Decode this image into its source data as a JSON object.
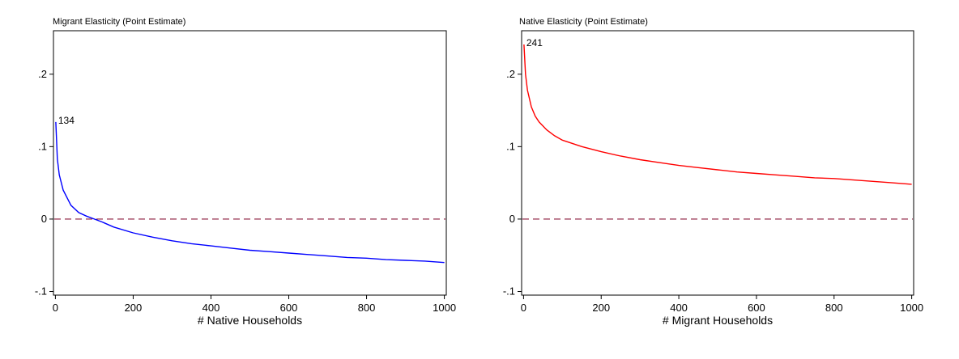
{
  "chart_data": [
    {
      "type": "line",
      "title": "Migrant Elasticity (Point Estimate)",
      "xlabel": "# Native Households",
      "ylabel": "",
      "xlim": [
        -5,
        1005
      ],
      "ylim": [
        -0.105,
        0.26
      ],
      "x_ticks": [
        0,
        200,
        400,
        600,
        800,
        1000
      ],
      "x_tick_labels": [
        "0",
        "200",
        "400",
        "600",
        "800",
        "1000"
      ],
      "y_ticks": [
        -0.1,
        0,
        0.1,
        0.2
      ],
      "y_tick_labels": [
        "-.1",
        "0",
        ".1",
        ".2"
      ],
      "reference_line": {
        "y": 0,
        "style": "dashed",
        "color": "#8b1a3c"
      },
      "annotation": {
        "x": 1,
        "y": 0.134,
        "text": "134"
      },
      "series": [
        {
          "color": "#0000ff",
          "x": [
            1,
            5,
            10,
            20,
            40,
            60,
            80,
            100,
            120,
            150,
            200,
            250,
            300,
            350,
            400,
            450,
            500,
            550,
            600,
            650,
            700,
            750,
            800,
            850,
            900,
            950,
            1000
          ],
          "y": [
            0.134,
            0.083,
            0.061,
            0.04,
            0.019,
            0.009,
            0.004,
            0.0,
            -0.004,
            -0.011,
            -0.019,
            -0.025,
            -0.03,
            -0.034,
            -0.037,
            -0.04,
            -0.043,
            -0.045,
            -0.047,
            -0.049,
            -0.051,
            -0.053,
            -0.054,
            -0.056,
            -0.057,
            -0.058,
            -0.06
          ]
        }
      ]
    },
    {
      "type": "line",
      "title": "Native Elasticity (Point Estimate)",
      "xlabel": "# Migrant Households",
      "ylabel": "",
      "xlim": [
        -5,
        1005
      ],
      "ylim": [
        -0.105,
        0.26
      ],
      "x_ticks": [
        0,
        200,
        400,
        600,
        800,
        1000
      ],
      "x_tick_labels": [
        "0",
        "200",
        "400",
        "600",
        "800",
        "1000"
      ],
      "y_ticks": [
        -0.1,
        0,
        0.1,
        0.2
      ],
      "y_tick_labels": [
        "-.1",
        "0",
        ".1",
        ".2"
      ],
      "reference_line": {
        "y": 0,
        "style": "dashed",
        "color": "#8b1a3c"
      },
      "annotation": {
        "x": 1,
        "y": 0.241,
        "text": "241"
      },
      "series": [
        {
          "color": "#ff0000",
          "x": [
            1,
            5,
            10,
            20,
            30,
            40,
            60,
            80,
            100,
            150,
            200,
            250,
            300,
            350,
            400,
            450,
            500,
            550,
            600,
            650,
            700,
            750,
            800,
            850,
            900,
            950,
            1000
          ],
          "y": [
            0.241,
            0.2,
            0.178,
            0.155,
            0.142,
            0.134,
            0.123,
            0.115,
            0.109,
            0.1,
            0.093,
            0.087,
            0.082,
            0.078,
            0.074,
            0.071,
            0.068,
            0.065,
            0.063,
            0.061,
            0.059,
            0.057,
            0.056,
            0.054,
            0.052,
            0.05,
            0.048
          ]
        }
      ]
    }
  ]
}
